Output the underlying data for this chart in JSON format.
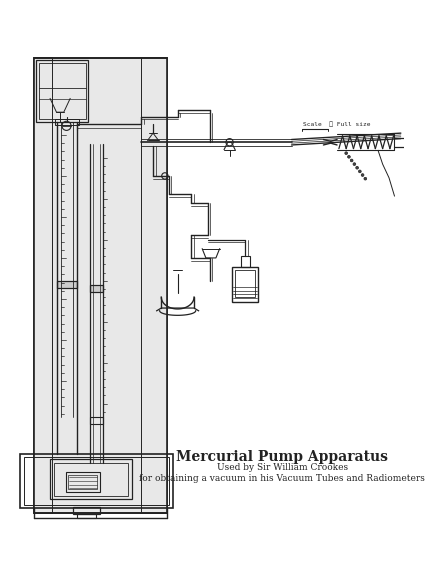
{
  "title": "Mercurial Pump Apparatus",
  "subtitle_line1": "Used by Sir William Crookes",
  "subtitle_line2": "for obtaining a vacuum in his Vacuum Tubes and Radiometers",
  "scale_label": "Scale  ⎯ Full size",
  "bg_color": "#ffffff",
  "line_color": "#222222",
  "title_fontsize": 10,
  "subtitle_fontsize": 6.5,
  "figsize": [
    4.43,
    5.76
  ],
  "dpi": 100
}
